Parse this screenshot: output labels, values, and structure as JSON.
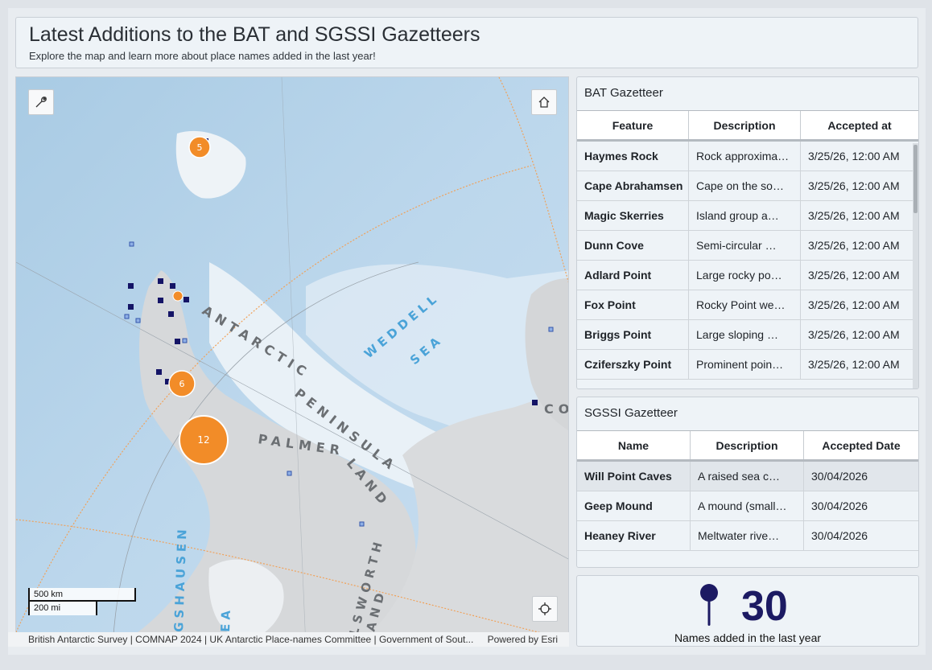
{
  "header": {
    "title": "Latest Additions to the BAT and SGSSI Gazetteers",
    "subtitle": "Explore the map and learn more about place names added in the last year!"
  },
  "map": {
    "tools_icon": "wrench-icon",
    "home_icon": "home-icon",
    "locate_icon": "crosshair-icon",
    "labels": {
      "peninsula": [
        "ANTARCTIC",
        "PENINSULA"
      ],
      "weddell": [
        "WEDDELL",
        "SEA"
      ],
      "palmer": [
        "PALMER",
        "LAND"
      ],
      "ellsworth": [
        "LLSWORTH",
        "AND"
      ],
      "bellingshausen": [
        "GSHAUSEN",
        "EA"
      ],
      "coats": "CO"
    },
    "clusters": [
      {
        "count": "5"
      },
      {
        "count": "6"
      },
      {
        "count": "12"
      }
    ],
    "scale": {
      "metric": "500 km",
      "imperial": "200 mi"
    },
    "attribution": "British Antarctic Survey | COMNAP 2024 | UK Antarctic Place-names Committee | Government of Sout...",
    "powered_by": "Powered by Esri",
    "colors": {
      "cluster": "#f28c28",
      "feature_marker": "#141466",
      "water": "#cfe3f1",
      "land": "#d9d9d9"
    }
  },
  "bat": {
    "title": "BAT Gazetteer",
    "columns": [
      "Feature",
      "Description",
      "Accepted at"
    ],
    "rows": [
      {
        "feature": "Haymes Rock",
        "description": "Rock approximately",
        "accepted": "3/25/26, 12:00 AM"
      },
      {
        "feature": "Cape Abrahamsen",
        "description": "Cape on the south",
        "accepted": "3/25/26, 12:00 AM"
      },
      {
        "feature": "Magic Skerries",
        "description": "Island group approx",
        "accepted": "3/25/26, 12:00 AM"
      },
      {
        "feature": "Dunn Cove",
        "description": "Semi-circular cove",
        "accepted": "3/25/26, 12:00 AM"
      },
      {
        "feature": "Adlard Point",
        "description": "Large rocky point",
        "accepted": "3/25/26, 12:00 AM"
      },
      {
        "feature": "Fox Point",
        "description": "Rocky Point west of",
        "accepted": "3/25/26, 12:00 AM"
      },
      {
        "feature": "Briggs Point",
        "description": "Large sloping rock",
        "accepted": "3/25/26, 12:00 AM"
      },
      {
        "feature": "Cziferszky Point",
        "description": "Prominent point on",
        "accepted": "3/25/26, 12:00 AM"
      }
    ]
  },
  "sgssi": {
    "title": "SGSSI Gazetteer",
    "columns": [
      "Name",
      "Description",
      "Accepted Date"
    ],
    "rows": [
      {
        "name": "Will Point Caves",
        "description": "A raised sea cave",
        "accepted": "30/04/2026"
      },
      {
        "name": "Geep Mound",
        "description": "A mound (small hill",
        "accepted": "30/04/2026"
      },
      {
        "name": "Heaney River",
        "description": "Meltwater river now",
        "accepted": "30/04/2026"
      }
    ]
  },
  "kpi": {
    "icon": "map-pin-icon",
    "value": "30",
    "caption": "Names added in the last year",
    "color": "#1c1a63"
  }
}
